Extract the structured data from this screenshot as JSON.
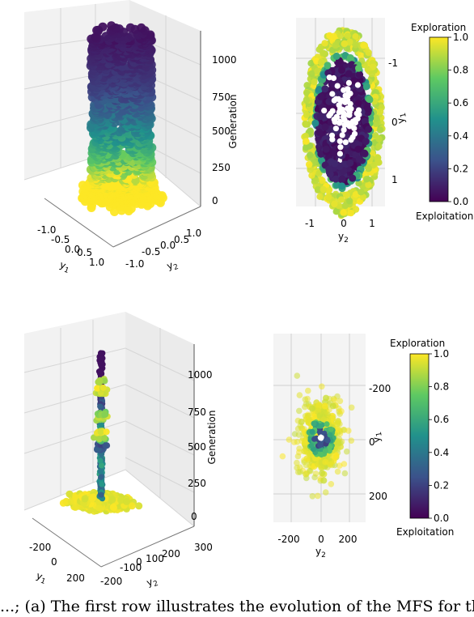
{
  "caption": "...; (a) The first row illustrates the evolution of the MFS for the ...",
  "colorbar": {
    "top_label": "Exploration",
    "bottom_label": "Exploitation",
    "bottom_label_alt": "Exploitation",
    "ticks": [
      "0.0",
      "0.2",
      "0.4",
      "0.6",
      "0.8",
      "1.0"
    ],
    "colormap": "viridis",
    "stops": [
      "#440154",
      "#3b528b",
      "#21918c",
      "#5ec962",
      "#fde725"
    ]
  },
  "chart_data": [
    {
      "type": "scatter",
      "view": "3d",
      "xlabel": "y1",
      "ylabel": "y2",
      "zlabel": "Generation",
      "x_ticks": [
        "-1.0",
        "-0.5",
        "0.0",
        "0.5",
        "1.0"
      ],
      "y_ticks": [
        "-1.0",
        "-0.5",
        "0.0",
        "0.5",
        "1.0"
      ],
      "z_ticks": [
        "0",
        "250",
        "500",
        "750",
        "1000"
      ],
      "zlim": [
        0,
        1150
      ],
      "color_by_z": [
        [
          0,
          1.0
        ],
        [
          120,
          1.0
        ],
        [
          300,
          0.7
        ],
        [
          500,
          0.45
        ],
        [
          750,
          0.2
        ],
        [
          1150,
          0.05
        ]
      ]
    },
    {
      "type": "scatter",
      "view": "top",
      "xlabel": "y2",
      "ylabel": "y1",
      "x_ticks": [
        "-1",
        "0",
        "1"
      ],
      "y_ticks": [
        "-1",
        "0",
        "1"
      ]
    },
    {
      "type": "scatter",
      "view": "3d",
      "xlabel": "y1",
      "ylabel": "y2",
      "zlabel": "Generation",
      "x_ticks": [
        "-200",
        "0",
        "200"
      ],
      "y_ticks": [
        "-200",
        "-100",
        "0",
        "100",
        "200",
        "300"
      ],
      "z_ticks": [
        "0",
        "250",
        "500",
        "750",
        "1000"
      ],
      "zlim": [
        0,
        1150
      ]
    },
    {
      "type": "scatter",
      "view": "top",
      "xlabel": "y2",
      "ylabel": "y1",
      "x_ticks": [
        "-200",
        "0",
        "200"
      ],
      "y_ticks": [
        "-200",
        "0",
        "200"
      ]
    }
  ]
}
